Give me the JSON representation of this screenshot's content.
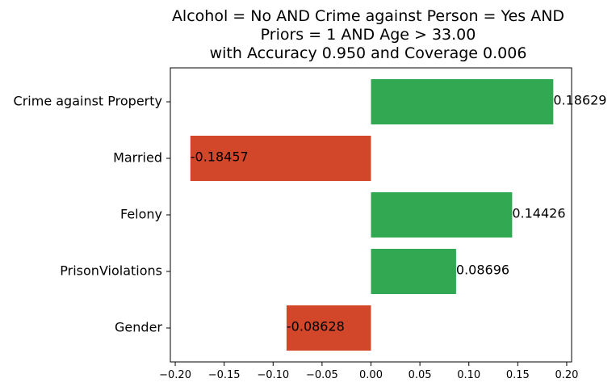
{
  "chart_data": {
    "type": "bar",
    "orientation": "horizontal",
    "title_lines": [
      "Alcohol = No AND Crime against Person = Yes AND",
      "Priors = 1 AND Age > 33.00",
      "with Accuracy 0.950 and Coverage 0.006"
    ],
    "categories": [
      "Crime against Property",
      "Married",
      "Felony",
      "PrisonViolations",
      "Gender"
    ],
    "values": [
      0.18629,
      -0.18457,
      0.14426,
      0.08696,
      -0.08628
    ],
    "value_labels": [
      "0.18629",
      "-0.18457",
      "0.14426",
      "0.08696",
      "-0.08628"
    ],
    "xlim": [
      -0.205,
      0.205
    ],
    "xticks": [
      -0.2,
      -0.15,
      -0.1,
      -0.05,
      0.0,
      0.05,
      0.1,
      0.15,
      0.2
    ],
    "xtick_labels": [
      "−0.20",
      "−0.15",
      "−0.10",
      "−0.05",
      "0.00",
      "0.05",
      "0.10",
      "0.15",
      "0.20"
    ],
    "positive_color": "#33a852",
    "negative_color": "#d2462a",
    "grid": false,
    "xlabel": "",
    "ylabel": ""
  }
}
